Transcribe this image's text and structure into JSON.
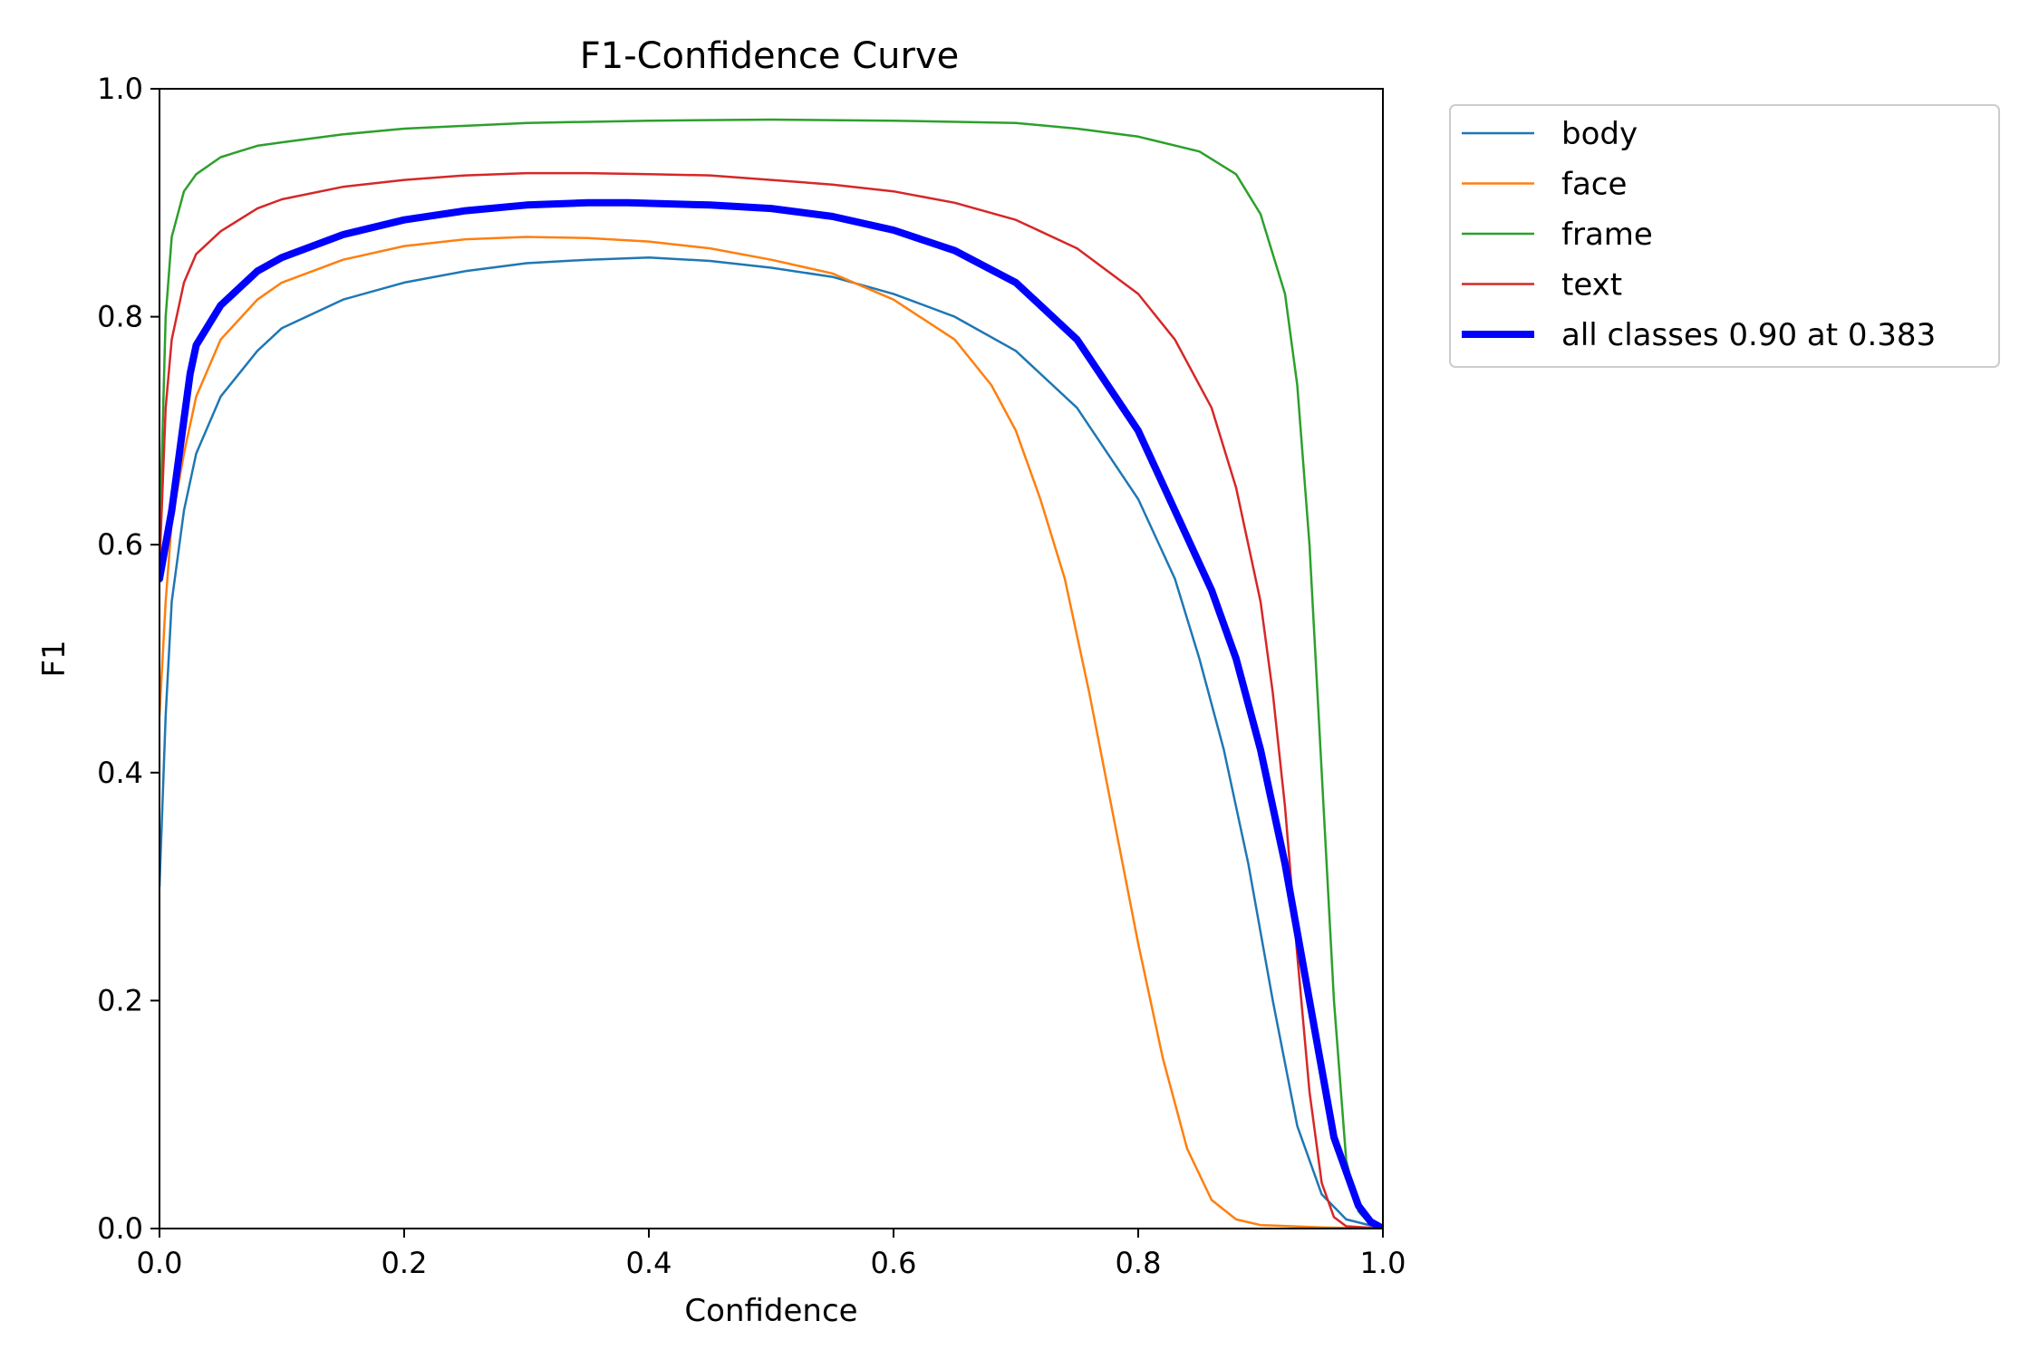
{
  "chart_data": {
    "type": "line",
    "title": "F1-Confidence Curve",
    "xlabel": "Confidence",
    "ylabel": "F1",
    "xlim": [
      0,
      1
    ],
    "ylim": [
      0,
      1
    ],
    "xticks": [
      "0.0",
      "0.2",
      "0.4",
      "0.6",
      "0.8",
      "1.0"
    ],
    "yticks": [
      "0.0",
      "0.2",
      "0.4",
      "0.6",
      "0.8",
      "1.0"
    ],
    "grid": false,
    "legend_position": "outside-top-right",
    "series": [
      {
        "name": "body",
        "color": "#1f77b4",
        "width": "thin",
        "points": [
          [
            0.0,
            0.3
          ],
          [
            0.005,
            0.45
          ],
          [
            0.01,
            0.55
          ],
          [
            0.02,
            0.63
          ],
          [
            0.03,
            0.68
          ],
          [
            0.05,
            0.73
          ],
          [
            0.08,
            0.77
          ],
          [
            0.1,
            0.79
          ],
          [
            0.15,
            0.815
          ],
          [
            0.2,
            0.83
          ],
          [
            0.25,
            0.84
          ],
          [
            0.3,
            0.847
          ],
          [
            0.35,
            0.85
          ],
          [
            0.4,
            0.852
          ],
          [
            0.45,
            0.849
          ],
          [
            0.5,
            0.843
          ],
          [
            0.55,
            0.835
          ],
          [
            0.6,
            0.82
          ],
          [
            0.65,
            0.8
          ],
          [
            0.7,
            0.77
          ],
          [
            0.75,
            0.72
          ],
          [
            0.8,
            0.64
          ],
          [
            0.83,
            0.57
          ],
          [
            0.85,
            0.5
          ],
          [
            0.87,
            0.42
          ],
          [
            0.89,
            0.32
          ],
          [
            0.91,
            0.2
          ],
          [
            0.93,
            0.09
          ],
          [
            0.95,
            0.03
          ],
          [
            0.97,
            0.008
          ],
          [
            1.0,
            0.0
          ]
        ]
      },
      {
        "name": "face",
        "color": "#ff7f0e",
        "width": "thin",
        "points": [
          [
            0.0,
            0.45
          ],
          [
            0.005,
            0.55
          ],
          [
            0.01,
            0.62
          ],
          [
            0.02,
            0.68
          ],
          [
            0.03,
            0.73
          ],
          [
            0.05,
            0.78
          ],
          [
            0.08,
            0.815
          ],
          [
            0.1,
            0.83
          ],
          [
            0.15,
            0.85
          ],
          [
            0.2,
            0.862
          ],
          [
            0.25,
            0.868
          ],
          [
            0.3,
            0.87
          ],
          [
            0.35,
            0.869
          ],
          [
            0.4,
            0.866
          ],
          [
            0.45,
            0.86
          ],
          [
            0.5,
            0.85
          ],
          [
            0.55,
            0.838
          ],
          [
            0.6,
            0.815
          ],
          [
            0.65,
            0.78
          ],
          [
            0.68,
            0.74
          ],
          [
            0.7,
            0.7
          ],
          [
            0.72,
            0.64
          ],
          [
            0.74,
            0.57
          ],
          [
            0.76,
            0.47
          ],
          [
            0.78,
            0.36
          ],
          [
            0.8,
            0.25
          ],
          [
            0.82,
            0.15
          ],
          [
            0.84,
            0.07
          ],
          [
            0.86,
            0.025
          ],
          [
            0.88,
            0.008
          ],
          [
            0.9,
            0.003
          ],
          [
            0.95,
            0.001
          ],
          [
            1.0,
            0.0
          ]
        ]
      },
      {
        "name": "frame",
        "color": "#2ca02c",
        "width": "thin",
        "points": [
          [
            0.0,
            0.6
          ],
          [
            0.005,
            0.8
          ],
          [
            0.01,
            0.87
          ],
          [
            0.02,
            0.91
          ],
          [
            0.03,
            0.925
          ],
          [
            0.05,
            0.94
          ],
          [
            0.08,
            0.95
          ],
          [
            0.1,
            0.953
          ],
          [
            0.15,
            0.96
          ],
          [
            0.2,
            0.965
          ],
          [
            0.3,
            0.97
          ],
          [
            0.4,
            0.972
          ],
          [
            0.5,
            0.973
          ],
          [
            0.6,
            0.972
          ],
          [
            0.7,
            0.97
          ],
          [
            0.75,
            0.965
          ],
          [
            0.8,
            0.958
          ],
          [
            0.85,
            0.945
          ],
          [
            0.88,
            0.925
          ],
          [
            0.9,
            0.89
          ],
          [
            0.92,
            0.82
          ],
          [
            0.93,
            0.74
          ],
          [
            0.94,
            0.6
          ],
          [
            0.95,
            0.4
          ],
          [
            0.96,
            0.2
          ],
          [
            0.97,
            0.06
          ],
          [
            0.98,
            0.015
          ],
          [
            0.99,
            0.003
          ],
          [
            1.0,
            0.0
          ]
        ]
      },
      {
        "name": "text",
        "color": "#d62728",
        "width": "thin",
        "points": [
          [
            0.0,
            0.58
          ],
          [
            0.005,
            0.72
          ],
          [
            0.01,
            0.78
          ],
          [
            0.02,
            0.83
          ],
          [
            0.03,
            0.855
          ],
          [
            0.05,
            0.875
          ],
          [
            0.08,
            0.895
          ],
          [
            0.1,
            0.903
          ],
          [
            0.15,
            0.914
          ],
          [
            0.2,
            0.92
          ],
          [
            0.25,
            0.924
          ],
          [
            0.3,
            0.926
          ],
          [
            0.35,
            0.926
          ],
          [
            0.4,
            0.925
          ],
          [
            0.45,
            0.924
          ],
          [
            0.5,
            0.92
          ],
          [
            0.55,
            0.916
          ],
          [
            0.6,
            0.91
          ],
          [
            0.65,
            0.9
          ],
          [
            0.7,
            0.885
          ],
          [
            0.75,
            0.86
          ],
          [
            0.8,
            0.82
          ],
          [
            0.83,
            0.78
          ],
          [
            0.86,
            0.72
          ],
          [
            0.88,
            0.65
          ],
          [
            0.9,
            0.55
          ],
          [
            0.91,
            0.47
          ],
          [
            0.92,
            0.37
          ],
          [
            0.93,
            0.24
          ],
          [
            0.94,
            0.12
          ],
          [
            0.95,
            0.04
          ],
          [
            0.96,
            0.01
          ],
          [
            0.97,
            0.002
          ],
          [
            1.0,
            0.0
          ]
        ]
      },
      {
        "name": "all classes 0.90 at 0.383",
        "color": "#0000ff",
        "width": "thick",
        "points": [
          [
            0.0,
            0.57
          ],
          [
            0.01,
            0.63
          ],
          [
            0.02,
            0.71
          ],
          [
            0.025,
            0.75
          ],
          [
            0.03,
            0.775
          ],
          [
            0.05,
            0.81
          ],
          [
            0.08,
            0.84
          ],
          [
            0.1,
            0.852
          ],
          [
            0.15,
            0.872
          ],
          [
            0.2,
            0.885
          ],
          [
            0.25,
            0.893
          ],
          [
            0.3,
            0.898
          ],
          [
            0.35,
            0.9
          ],
          [
            0.383,
            0.9
          ],
          [
            0.45,
            0.898
          ],
          [
            0.5,
            0.895
          ],
          [
            0.55,
            0.888
          ],
          [
            0.6,
            0.876
          ],
          [
            0.65,
            0.858
          ],
          [
            0.7,
            0.83
          ],
          [
            0.75,
            0.78
          ],
          [
            0.8,
            0.7
          ],
          [
            0.83,
            0.63
          ],
          [
            0.86,
            0.56
          ],
          [
            0.88,
            0.5
          ],
          [
            0.9,
            0.42
          ],
          [
            0.92,
            0.32
          ],
          [
            0.94,
            0.2
          ],
          [
            0.96,
            0.08
          ],
          [
            0.98,
            0.02
          ],
          [
            0.99,
            0.006
          ],
          [
            1.0,
            0.0
          ]
        ]
      }
    ]
  }
}
